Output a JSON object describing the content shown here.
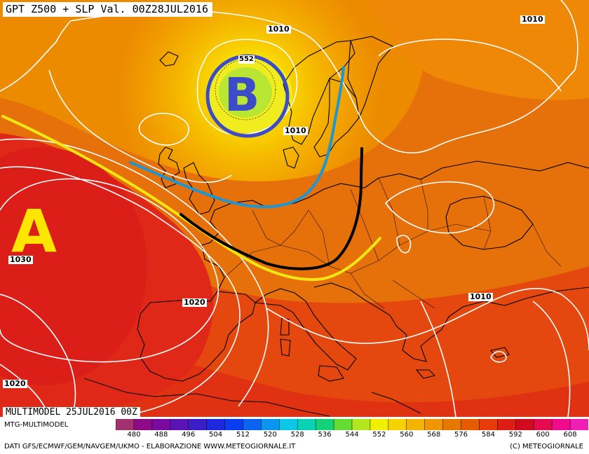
{
  "title": "GPT Z500 + SLP Val. 00Z28JUL2016",
  "model_run": "MULTIMODEL 25JUL2016 00Z",
  "footer": {
    "model_name": "MTG-MULTIMODEL",
    "credits": "DATI GFS/ECMWF/GEM/NAVGEM/UKMO - ELABORAZIONE WWW.METEOGIORNALE.IT",
    "copyright": "(C) METEOGIORNALE"
  },
  "colorbar": {
    "ticks": [
      "480",
      "488",
      "496",
      "504",
      "512",
      "520",
      "528",
      "536",
      "544",
      "552",
      "560",
      "568",
      "576",
      "584",
      "592",
      "600",
      "608"
    ],
    "colors": [
      "#a0336e",
      "#8e0a87",
      "#7a0aa0",
      "#5a14b4",
      "#3c1ec8",
      "#1e28dc",
      "#0a3cf0",
      "#0a64f0",
      "#0a96f0",
      "#0ac8e6",
      "#0ad2b4",
      "#14d278",
      "#64dc32",
      "#b4e61e",
      "#f0f000",
      "#f5d200",
      "#f5b400",
      "#f09600",
      "#e67800",
      "#e65a00",
      "#e63c0a",
      "#dc1e14",
      "#d20a1e",
      "#e60a50",
      "#f00a8c",
      "#f01eb4"
    ]
  },
  "isobar_labels": {
    "top_1010": "1010",
    "topright_1010": "1010",
    "north_1010": "1010",
    "atlantic_1030": "1030",
    "iberia_1020": "1020",
    "southwest_1020": "1020",
    "east_1010": "1010"
  },
  "geopotential_label": "552",
  "pressure_centers": {
    "low": "B",
    "high": "A"
  },
  "colors": {
    "low_center": "#3c4bc8",
    "high_center": "#ffe600",
    "trough_blue": "#1e96d2",
    "ridge_yellow": "#f0e614",
    "trough_black": "#000000",
    "isobars": "#ffffff",
    "coastline": "#000000"
  }
}
